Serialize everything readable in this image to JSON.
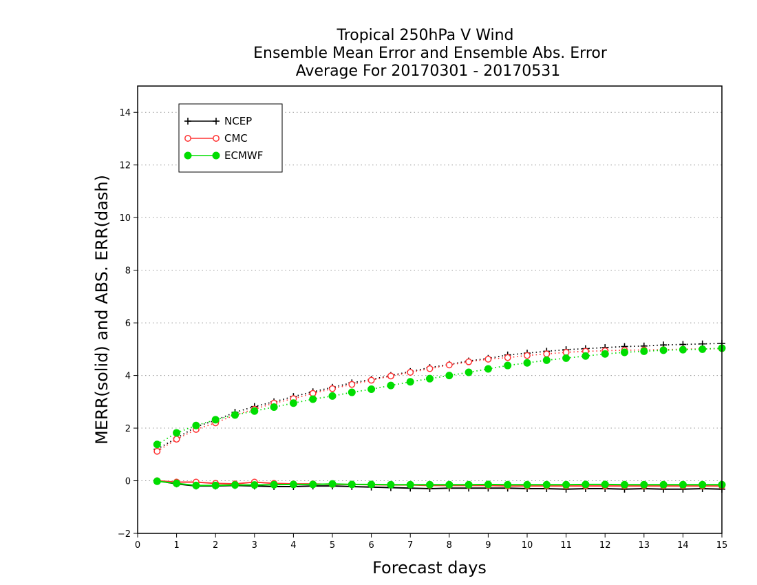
{
  "chart_data": {
    "type": "line",
    "title_lines": [
      "Tropical 250hPa V Wind",
      "Ensemble Mean Error and Ensemble Abs. Error",
      "Average For 20170301 - 20170531"
    ],
    "xlabel": "Forecast days",
    "ylabel": "MERR(solid) and ABS. ERR(dash)",
    "xlim": [
      0,
      15
    ],
    "ylim": [
      -2,
      15
    ],
    "x_ticks": [
      0,
      1,
      2,
      3,
      4,
      5,
      6,
      7,
      8,
      9,
      10,
      11,
      12,
      13,
      14,
      15
    ],
    "y_ticks": [
      -2,
      0,
      2,
      4,
      6,
      8,
      10,
      12,
      14
    ],
    "grid": "horizontal dotted",
    "legend_position": "top-left",
    "x": [
      0.5,
      1,
      1.5,
      2,
      2.5,
      3,
      3.5,
      4,
      4.5,
      5,
      5.5,
      6,
      6.5,
      7,
      7.5,
      8,
      8.5,
      9,
      9.5,
      10,
      10.5,
      11,
      11.5,
      12,
      12.5,
      13,
      13.5,
      14,
      14.5,
      15
    ],
    "series": [
      {
        "name": "NCEP",
        "color": "#000000",
        "marker": "plus",
        "merr": [
          0.0,
          -0.12,
          -0.2,
          -0.2,
          -0.18,
          -0.2,
          -0.22,
          -0.22,
          -0.2,
          -0.2,
          -0.22,
          -0.24,
          -0.26,
          -0.28,
          -0.3,
          -0.28,
          -0.28,
          -0.28,
          -0.28,
          -0.3,
          -0.3,
          -0.32,
          -0.3,
          -0.3,
          -0.32,
          -0.3,
          -0.32,
          -0.32,
          -0.3,
          -0.32
        ],
        "abs_err": [
          1.2,
          1.62,
          2.05,
          2.3,
          2.6,
          2.82,
          3.0,
          3.2,
          3.38,
          3.55,
          3.72,
          3.85,
          4.0,
          4.15,
          4.3,
          4.42,
          4.55,
          4.65,
          4.78,
          4.85,
          4.92,
          4.98,
          5.02,
          5.06,
          5.1,
          5.12,
          5.16,
          5.18,
          5.2,
          5.22
        ]
      },
      {
        "name": "CMC",
        "color": "#ff3333",
        "marker": "open-circle",
        "merr": [
          0.0,
          -0.05,
          -0.05,
          -0.1,
          -0.12,
          -0.05,
          -0.1,
          -0.12,
          -0.12,
          -0.14,
          -0.14,
          -0.15,
          -0.16,
          -0.16,
          -0.18,
          -0.18,
          -0.18,
          -0.18,
          -0.2,
          -0.2,
          -0.2,
          -0.2,
          -0.2,
          -0.2,
          -0.2,
          -0.2,
          -0.2,
          -0.2,
          -0.2,
          -0.2
        ],
        "abs_err": [
          1.12,
          1.58,
          1.95,
          2.2,
          2.5,
          2.72,
          2.95,
          3.12,
          3.32,
          3.5,
          3.66,
          3.82,
          3.98,
          4.12,
          4.26,
          4.4,
          4.52,
          4.62,
          4.68,
          4.76,
          4.82,
          4.88,
          4.92,
          4.94,
          4.96,
          4.97,
          4.98,
          5.0,
          5.01,
          5.02
        ]
      },
      {
        "name": "ECMWF",
        "color": "#00dd00",
        "marker": "filled-circle",
        "merr": [
          -0.02,
          -0.1,
          -0.18,
          -0.18,
          -0.16,
          -0.16,
          -0.15,
          -0.14,
          -0.14,
          -0.12,
          -0.14,
          -0.14,
          -0.15,
          -0.15,
          -0.15,
          -0.15,
          -0.15,
          -0.14,
          -0.15,
          -0.15,
          -0.15,
          -0.15,
          -0.14,
          -0.14,
          -0.15,
          -0.15,
          -0.15,
          -0.15,
          -0.15,
          -0.15
        ],
        "abs_err": [
          1.38,
          1.82,
          2.1,
          2.32,
          2.5,
          2.65,
          2.8,
          2.95,
          3.1,
          3.22,
          3.36,
          3.48,
          3.62,
          3.76,
          3.88,
          4.0,
          4.12,
          4.25,
          4.38,
          4.48,
          4.58,
          4.66,
          4.74,
          4.82,
          4.88,
          4.92,
          4.96,
          4.98,
          5.0,
          5.04
        ]
      }
    ]
  }
}
